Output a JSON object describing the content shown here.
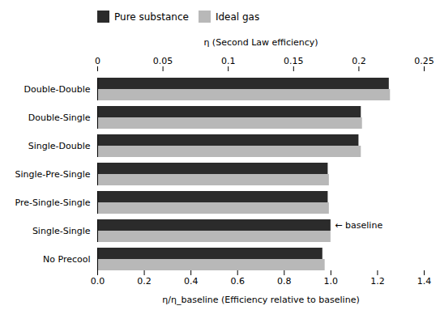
{
  "chart_data": {
    "type": "bar",
    "orientation": "horizontal",
    "categories": [
      "No Precool",
      "Single-Single",
      "Pre-Single-Single",
      "Single-Pre-Single",
      "Single-Double",
      "Double-Single",
      "Double-Double"
    ],
    "series": [
      {
        "name": "Pure substance",
        "color": "#2b2b2b",
        "values": [
          0.965,
          1.0,
          0.988,
          0.988,
          1.12,
          1.13,
          1.25
        ]
      },
      {
        "name": "Ideal gas",
        "color": "#b8b8b8",
        "values": [
          0.975,
          1.0,
          0.993,
          0.993,
          1.13,
          1.135,
          1.255
        ]
      }
    ],
    "xlabel": "η/η_baseline (Efficiency relative to baseline)",
    "xlim": [
      0,
      1.4
    ],
    "xticks": [
      {
        "value": 0,
        "label": "0.0"
      },
      0.2,
      0.4,
      0.6,
      0.8,
      {
        "value": 1.0,
        "label": "1.0"
      },
      1.2,
      1.4
    ],
    "x2label": "η (Second Law efficiency)",
    "x2lim": [
      0,
      0.25
    ],
    "x2ticks": [
      0,
      0.05,
      0.1,
      0.15,
      0.2,
      0.25
    ],
    "annotations": [
      {
        "text": "← baseline",
        "category": "Single-Single",
        "series": "Pure substance"
      }
    ],
    "legend": "top",
    "grid": false
  }
}
